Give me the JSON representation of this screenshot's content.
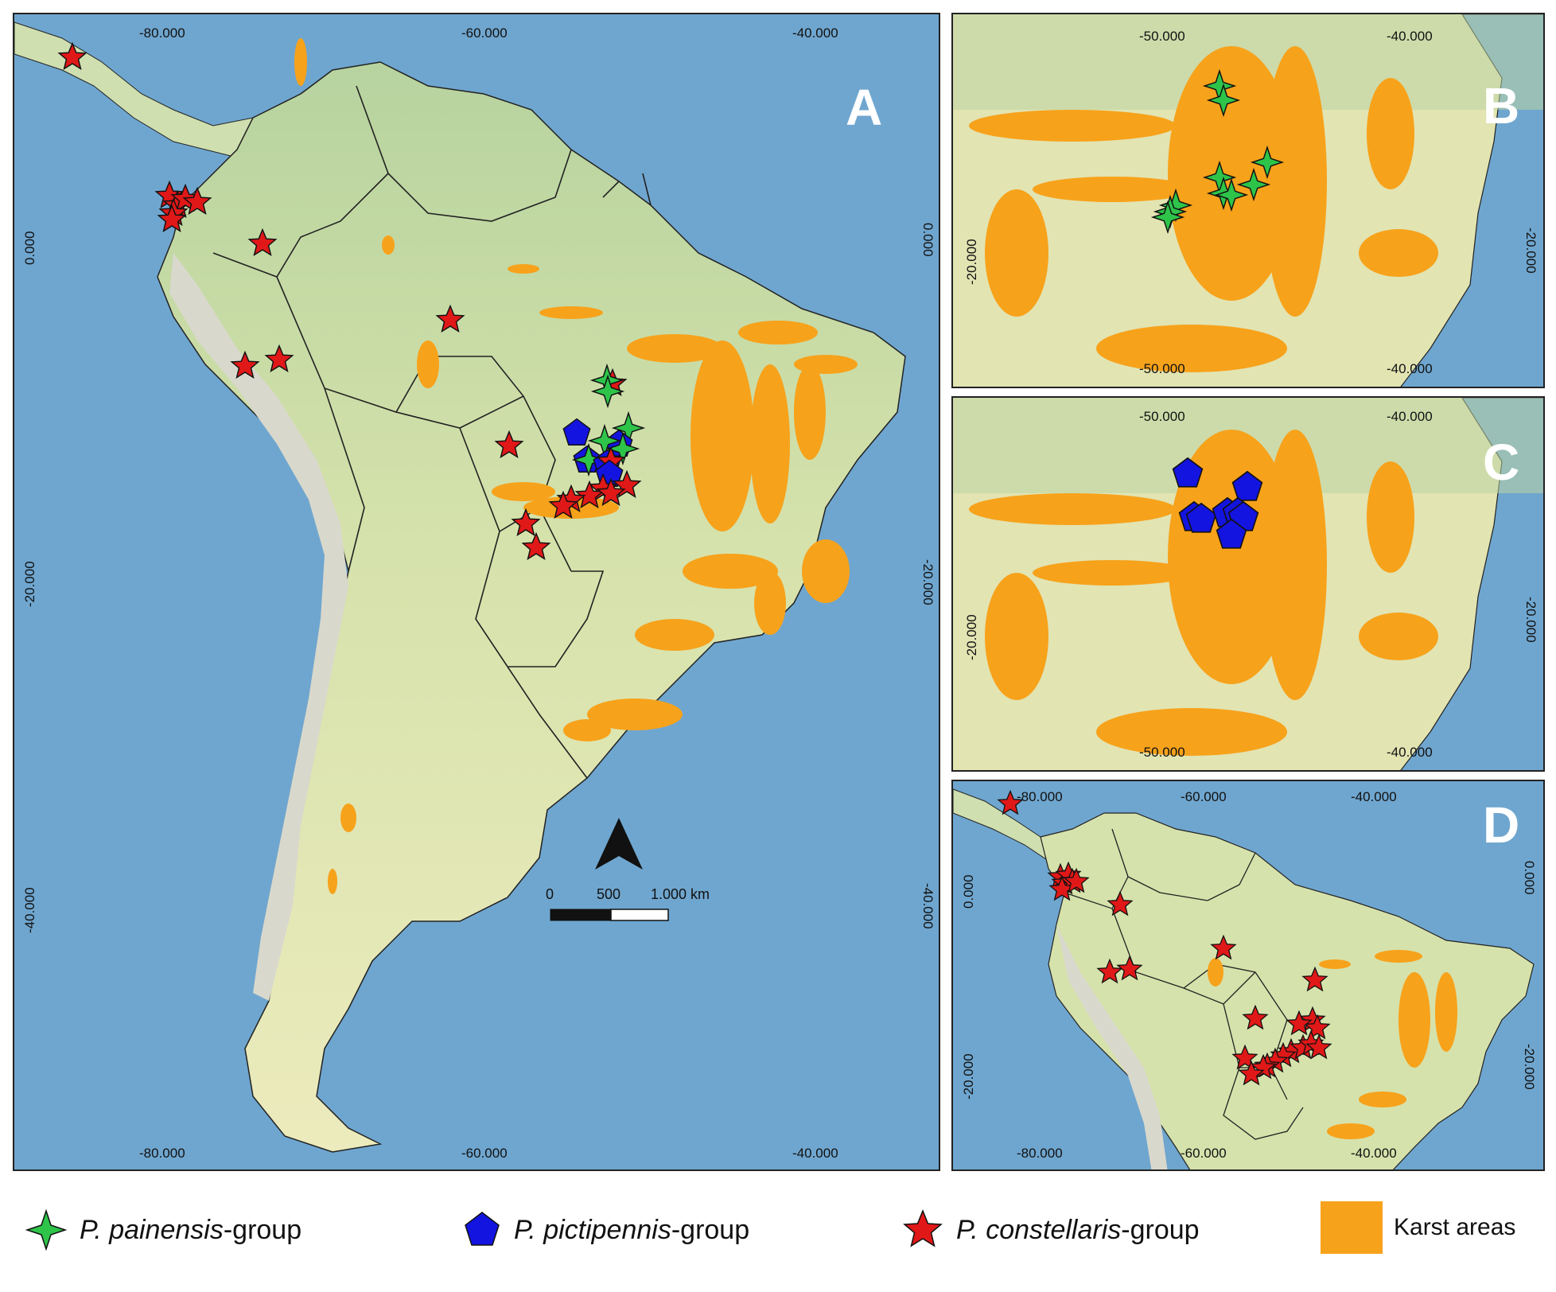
{
  "panels": [
    {
      "id": "A",
      "letter": "A",
      "coords_top": [
        "-80.000",
        "-60.000",
        "-40.000"
      ],
      "coords_bottom": [
        "-80.000",
        "-60.000",
        "-40.000"
      ],
      "coords_left": [
        "0.000",
        "-20.000",
        "-40.000"
      ],
      "coords_right": [
        "0.000",
        "-20.000",
        "-40.000"
      ]
    },
    {
      "id": "B",
      "letter": "B",
      "coords_top": [
        "-50.000",
        "-40.000"
      ],
      "coords_bottom": [
        "-50.000",
        "-40.000"
      ],
      "coords_left": [
        "-20.000"
      ],
      "coords_right": [
        "-20.000"
      ]
    },
    {
      "id": "C",
      "letter": "C",
      "coords_top": [
        "-50.000",
        "-40.000"
      ],
      "coords_bottom": [
        "-50.000",
        "-40.000"
      ],
      "coords_left": [
        "-20.000"
      ],
      "coords_right": [
        "-20.000"
      ]
    },
    {
      "id": "D",
      "letter": "D",
      "coords_top": [
        "-80.000",
        "-60.000",
        "-40.000"
      ],
      "coords_bottom": [
        "-80.000",
        "-60.000",
        "-40.000"
      ],
      "coords_left": [
        "0.000",
        "-20.000"
      ],
      "coords_right": [
        "0.000",
        "-20.000"
      ]
    }
  ],
  "scale_bar": {
    "labels": [
      "0",
      "500",
      "1.000 km"
    ]
  },
  "legend": [
    {
      "prefix": "P. painensis",
      "suffix": "-group",
      "icon": "green-star-icon",
      "color": "#2ec44a"
    },
    {
      "prefix": "P. pictipennis",
      "suffix": "-group",
      "icon": "blue-pentagon-icon",
      "color": "#1414e0"
    },
    {
      "prefix": "P. constellaris",
      "suffix": "-group",
      "icon": "red-star-icon",
      "color": "#e01818"
    },
    {
      "prefix": "Karst areas",
      "suffix": "",
      "icon": "orange-square-icon",
      "color": "#f7a21b"
    }
  ],
  "colors": {
    "ocean": "#6fa6cf",
    "land": "#e6e6b0",
    "lowland": "#b9d4a3",
    "mountain": "#d8d8cf",
    "karst": "#f7a21b",
    "border": "#222222"
  }
}
